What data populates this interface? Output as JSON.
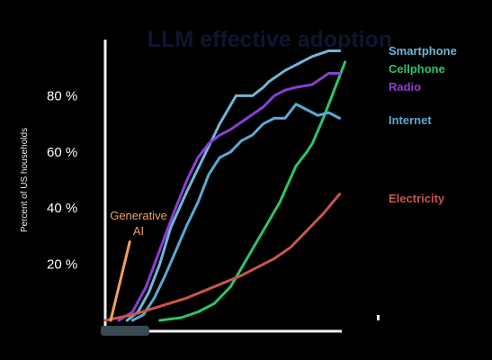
{
  "chart_data": {
    "type": "line",
    "title": "LLM effective adoption",
    "ylabel": "Percent of US households",
    "xlabel": "",
    "ylim": [
      0,
      100
    ],
    "xlim": [
      0,
      100
    ],
    "y_ticks": [
      {
        "value": 20,
        "label": "20 %"
      },
      {
        "value": 40,
        "label": "40 %"
      },
      {
        "value": 60,
        "label": "60 %"
      },
      {
        "value": 80,
        "label": "80 %"
      }
    ],
    "grid": false,
    "annotation": {
      "label_line1": "Generative",
      "label_line2": "AI",
      "color": "#f0a060"
    },
    "series": [
      {
        "name": "Smartphone",
        "color": "#6fb7d6",
        "x": [
          8,
          12,
          16,
          20,
          24,
          30,
          36,
          42,
          48,
          54,
          58,
          60,
          66,
          70,
          76,
          82,
          86
        ],
        "y": [
          0,
          3,
          10,
          20,
          33,
          46,
          58,
          70,
          80,
          80,
          83,
          85,
          89,
          91,
          94,
          96,
          96
        ]
      },
      {
        "name": "Cellphone",
        "color": "#2ec36a",
        "x": [
          20,
          28,
          34,
          40,
          46,
          52,
          58,
          64,
          70,
          74,
          76,
          80,
          84,
          88
        ],
        "y": [
          0,
          1,
          3,
          6,
          12,
          22,
          32,
          42,
          55,
          60,
          63,
          72,
          82,
          92
        ]
      },
      {
        "name": "Radio",
        "color": "#8a3fd1",
        "x": [
          5,
          10,
          15,
          20,
          25,
          30,
          34,
          38,
          42,
          46,
          52,
          58,
          62,
          66,
          70,
          76,
          82,
          86
        ],
        "y": [
          0,
          3,
          12,
          25,
          38,
          50,
          58,
          63,
          66,
          68,
          72,
          76,
          80,
          82,
          83,
          84,
          88,
          88
        ]
      },
      {
        "name": "Internet",
        "color": "#5aa9d3",
        "x": [
          10,
          14,
          18,
          22,
          26,
          30,
          34,
          38,
          42,
          46,
          50,
          54,
          58,
          62,
          66,
          70,
          74,
          78,
          82,
          86
        ],
        "y": [
          0,
          2,
          8,
          16,
          25,
          34,
          42,
          52,
          58,
          60,
          64,
          66,
          70,
          72,
          72,
          77,
          75,
          73,
          74,
          72
        ]
      },
      {
        "name": "Electricity",
        "color": "#c8564a",
        "x": [
          0,
          10,
          20,
          30,
          40,
          50,
          56,
          62,
          68,
          74,
          80,
          86
        ],
        "y": [
          0,
          2,
          5,
          8,
          12,
          16,
          19,
          22,
          26,
          32,
          38,
          45
        ]
      },
      {
        "name": "",
        "color": "#f0a060",
        "x": [
          2,
          9
        ],
        "y": [
          0,
          28
        ]
      }
    ]
  }
}
